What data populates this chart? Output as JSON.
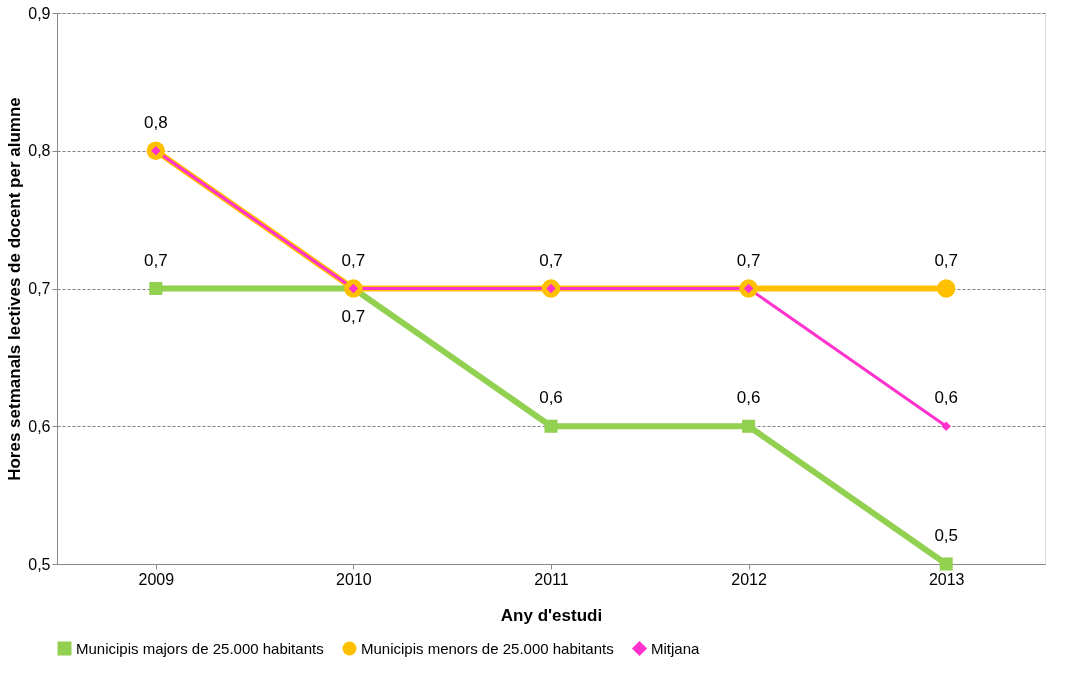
{
  "chart_data": {
    "type": "line",
    "xlabel": "Any d'estudi",
    "ylabel": "Hores setmanals lectives de docent per alumne",
    "categories": [
      "2009",
      "2010",
      "2011",
      "2012",
      "2013"
    ],
    "series": [
      {
        "name": "Municipis majors de 25.000  habitants",
        "color": "#92d050",
        "marker": "square",
        "values": [
          0.7,
          0.7,
          0.6,
          0.6,
          0.5
        ],
        "value_labels": [
          "0,7",
          "0,7",
          "0,6",
          "0,6",
          "0,5"
        ]
      },
      {
        "name": "Municipis menors de 25.000  habitants",
        "color": "#ffc000",
        "marker": "circle",
        "values": [
          0.8,
          0.7,
          0.7,
          0.7,
          0.7
        ],
        "value_labels": [
          "0,8",
          "0,7",
          "0,7",
          "0,7",
          "0,7"
        ]
      },
      {
        "name": "Mitjana",
        "color": "#ff33cc",
        "marker": "diamond",
        "values": [
          0.8,
          0.7,
          0.7,
          0.7,
          0.6
        ],
        "value_labels": [
          null,
          null,
          null,
          null,
          "0,6"
        ]
      }
    ],
    "ylim": [
      0.5,
      0.9
    ],
    "yticks": [
      {
        "value": 0.5,
        "label": "0,5"
      },
      {
        "value": 0.6,
        "label": "0,6"
      },
      {
        "value": 0.7,
        "label": "0,7"
      },
      {
        "value": 0.8,
        "label": "0,8"
      },
      {
        "value": 0.9,
        "label": "0,9"
      }
    ],
    "grid": "y",
    "legend": "bottom",
    "line_style": "solid"
  }
}
